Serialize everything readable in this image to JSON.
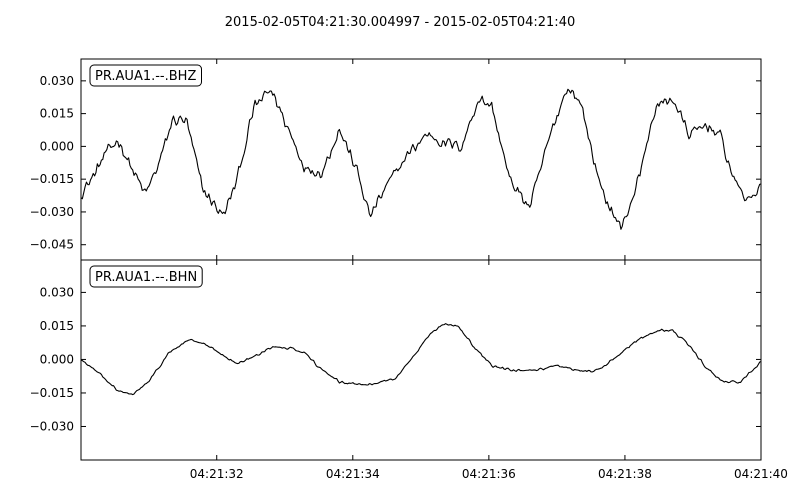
{
  "chart_data": {
    "type": "line",
    "title": "2015-02-05T04:21:30.004997  -  2015-02-05T04:21:40",
    "xlim": [
      "04:21:30.004997",
      "04:21:40"
    ],
    "x_ticks": [
      "04:21:32",
      "04:21:34",
      "04:21:36",
      "04:21:38",
      "04:21:40"
    ],
    "grid": false,
    "panels": [
      {
        "label": "PR.AUA1.--.BHZ",
        "ylim": [
          -0.052,
          0.04
        ],
        "y_ticks": [
          0.03,
          0.015,
          0.0,
          -0.015,
          -0.03,
          -0.045
        ],
        "y_tick_labels": [
          "0.030",
          "0.015",
          "0.000",
          "−0.015",
          "−0.030",
          "−0.045"
        ],
        "series": [
          {
            "color": "#000000",
            "t": [
              0.0,
              0.2,
              0.35,
              0.55,
              0.75,
              0.95,
              1.15,
              1.35,
              1.55,
              1.8,
              2.1,
              2.3,
              2.55,
              2.8,
              3.05,
              3.3,
              3.55,
              3.8,
              4.05,
              4.25,
              4.5,
              4.8,
              5.1,
              5.3,
              5.6,
              5.85,
              6.05,
              6.3,
              6.6,
              6.9,
              7.15,
              7.35,
              7.65,
              7.95,
              8.2,
              8.45,
              8.7,
              8.95,
              9.2,
              9.4,
              9.6,
              9.8,
              10.0
            ],
            "values": [
              -0.022,
              -0.013,
              -0.004,
              0.003,
              -0.01,
              -0.022,
              -0.008,
              0.012,
              0.012,
              -0.02,
              -0.032,
              -0.015,
              0.018,
              0.026,
              0.008,
              -0.01,
              -0.012,
              0.008,
              -0.01,
              -0.032,
              -0.018,
              -0.004,
              0.006,
              0.002,
              0.0,
              0.022,
              0.018,
              -0.015,
              -0.028,
              0.005,
              0.027,
              0.02,
              -0.02,
              -0.038,
              -0.015,
              0.018,
              0.022,
              0.005,
              0.01,
              0.005,
              -0.015,
              -0.025,
              -0.018
            ]
          }
        ]
      },
      {
        "label": "PR.AUA1.--.BHN",
        "ylim": [
          -0.045,
          0.0445
        ],
        "y_ticks": [
          0.03,
          0.015,
          0.0,
          -0.015,
          -0.03
        ],
        "y_tick_labels": [
          "0.030",
          "0.015",
          "0.000",
          "−0.015",
          "−0.030"
        ],
        "series": [
          {
            "color": "#000000",
            "t": [
              0.0,
              0.3,
              0.55,
              0.75,
              1.0,
              1.3,
              1.6,
              1.8,
              2.1,
              2.3,
              2.6,
              2.85,
              3.1,
              3.3,
              3.55,
              3.8,
              4.05,
              4.35,
              4.65,
              4.9,
              5.15,
              5.35,
              5.55,
              5.8,
              6.05,
              6.35,
              6.7,
              7.0,
              7.3,
              7.6,
              7.9,
              8.15,
              8.45,
              8.7,
              8.95,
              9.2,
              9.45,
              9.7,
              10.0
            ],
            "values": [
              0.0,
              -0.007,
              -0.014,
              -0.016,
              -0.01,
              0.003,
              0.009,
              0.007,
              0.002,
              -0.002,
              0.002,
              0.006,
              0.005,
              0.003,
              -0.005,
              -0.01,
              -0.011,
              -0.011,
              -0.008,
              0.002,
              0.012,
              0.016,
              0.015,
              0.005,
              -0.003,
              -0.005,
              -0.005,
              -0.003,
              -0.005,
              -0.005,
              0.002,
              0.008,
              0.013,
              0.013,
              0.006,
              -0.004,
              -0.01,
              -0.01,
              -0.001
            ]
          }
        ]
      }
    ]
  }
}
